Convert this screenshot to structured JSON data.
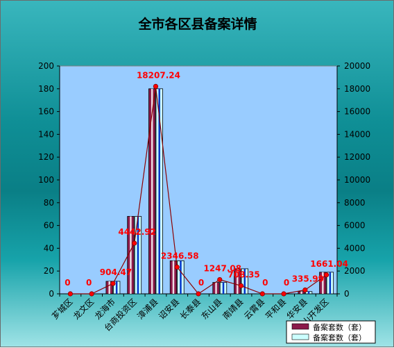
{
  "chart_data": {
    "type": "bar",
    "title": "全市各区县备案详情",
    "categories": [
      "芗城区",
      "龙文区",
      "龙海市",
      "台商投资区",
      "漳浦县",
      "诏安县",
      "长泰县",
      "东山县",
      "南靖县",
      "云霄县",
      "平和县",
      "华安县",
      "常山开发区"
    ],
    "series": [
      {
        "name": "备案套数（套）",
        "kind": "bar",
        "axis": "left",
        "color": "#8b1a4a",
        "values": [
          0,
          0,
          11,
          68,
          180,
          29,
          0,
          10,
          22,
          0,
          0,
          2,
          19
        ]
      },
      {
        "name": "备案套数（套）",
        "kind": "bar",
        "axis": "left",
        "color": "#ccffff",
        "values": [
          0,
          0,
          11,
          68,
          180,
          29,
          0,
          10,
          22,
          0,
          0,
          2,
          19
        ]
      },
      {
        "kind": "line",
        "axis": "right",
        "color": "#8b0000",
        "values": [
          0,
          0,
          904.47,
          4442.92,
          18207.24,
          2346.58,
          0,
          1247.08,
          708.35,
          0,
          0,
          335.99,
          1661.04
        ],
        "labels": [
          "0",
          "0",
          "904.47",
          "4442.92",
          "18207.24",
          "2346.58",
          "0",
          "1247.08",
          "708.35",
          "0",
          "0",
          "335.99",
          "1661.04"
        ]
      }
    ],
    "y_left": {
      "min": 0,
      "max": 200,
      "ticks": [
        "0",
        "20",
        "40",
        "60",
        "80",
        "100",
        "120",
        "140",
        "160",
        "180",
        "200"
      ]
    },
    "y_right": {
      "min": 0,
      "max": 20000,
      "ticks": [
        "0",
        "2000",
        "4000",
        "6000",
        "8000",
        "10000",
        "12000",
        "14000",
        "16000",
        "18000",
        "20000"
      ]
    },
    "grid": false,
    "legend_position": "bottom-right",
    "plot_background": "#99ccff"
  }
}
